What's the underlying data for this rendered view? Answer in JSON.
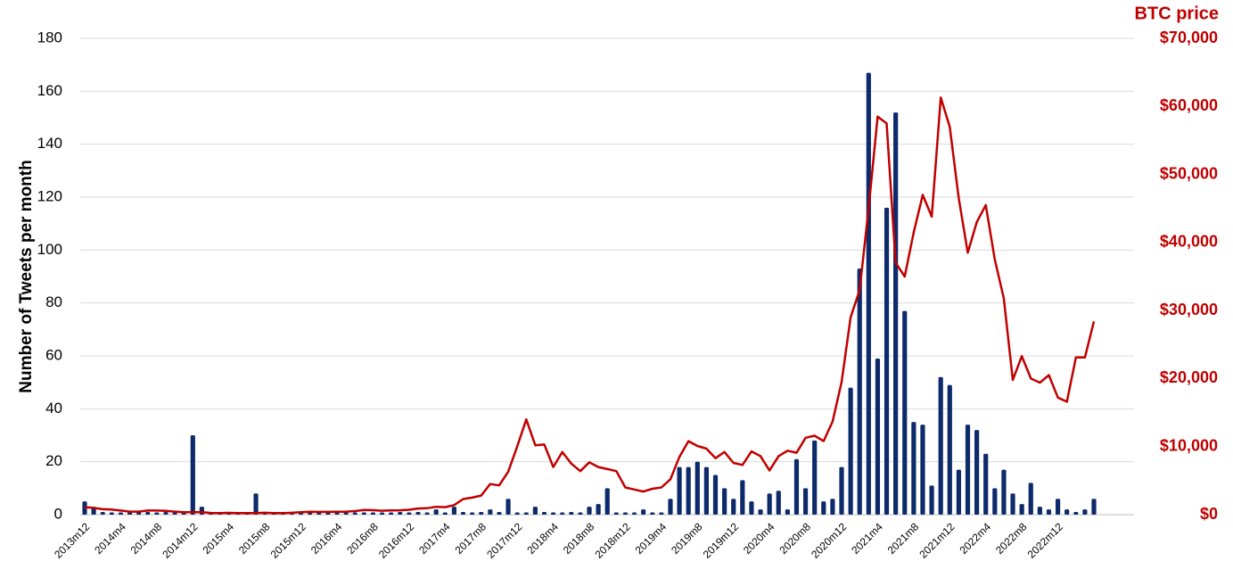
{
  "chart_data": {
    "type": "combo",
    "y_label": "Number of Tweets per month",
    "y2_label": "BTC price",
    "categories": [
      "2013m12",
      null,
      null,
      null,
      "2014m4",
      null,
      null,
      null,
      "2014m8",
      null,
      null,
      null,
      "2014m12",
      null,
      null,
      null,
      "2015m4",
      null,
      null,
      null,
      "2015m8",
      null,
      null,
      null,
      "2015m12",
      null,
      null,
      null,
      "2016m4",
      null,
      null,
      null,
      "2016m8",
      null,
      null,
      null,
      "2016m12",
      null,
      null,
      null,
      "2017m4",
      null,
      null,
      null,
      "2017m8",
      null,
      null,
      null,
      "2017m12",
      null,
      null,
      null,
      "2018m4",
      null,
      null,
      null,
      "2018m8",
      null,
      null,
      null,
      "2018m12",
      null,
      null,
      null,
      "2019m4",
      null,
      null,
      null,
      "2019m8",
      null,
      null,
      null,
      "2019m12",
      null,
      null,
      null,
      "2020m4",
      null,
      null,
      null,
      "2020m8",
      null,
      null,
      null,
      "2020m12",
      null,
      null,
      null,
      "2021m4",
      null,
      null,
      null,
      "2021m8",
      null,
      null,
      null,
      "2021m12",
      null,
      null,
      null,
      "2022m4",
      null,
      null,
      null,
      "2022m8",
      null,
      null,
      null,
      "2022m12",
      null,
      null,
      null,
      null
    ],
    "series": [
      {
        "type": "bar",
        "color": "#0d2a6b",
        "axis": "y",
        "values": [
          5,
          3,
          1,
          0,
          0,
          0,
          1,
          1,
          0,
          1,
          0,
          0,
          30,
          3,
          0,
          0,
          0,
          1,
          0,
          8,
          0,
          0,
          0,
          0,
          0,
          1,
          0,
          0,
          0,
          1,
          0,
          0,
          0,
          0,
          0,
          1,
          0,
          1,
          0,
          2,
          0,
          3,
          1,
          0,
          1,
          2,
          1,
          6,
          0,
          0,
          3,
          1,
          0,
          0,
          1,
          0,
          3,
          4,
          10,
          0,
          0,
          0,
          2,
          0,
          0,
          6,
          18,
          18,
          20,
          18,
          15,
          10,
          6,
          13,
          5,
          2,
          8,
          9,
          2,
          21,
          10,
          28,
          5,
          6,
          18,
          48,
          93,
          167,
          59,
          116,
          152,
          77,
          35,
          34,
          11,
          52,
          49,
          17,
          34,
          32,
          23,
          10,
          17,
          8,
          4,
          12,
          3,
          2,
          6,
          2,
          1,
          2,
          6
        ]
      },
      {
        "type": "line",
        "color": "#c00000",
        "axis": "y2",
        "values": [
          1100,
          1000,
          800,
          750,
          600,
          450,
          450,
          600,
          600,
          550,
          450,
          350,
          350,
          350,
          250,
          230,
          260,
          240,
          240,
          240,
          280,
          230,
          240,
          280,
          350,
          420,
          400,
          400,
          420,
          450,
          530,
          700,
          650,
          580,
          610,
          640,
          720,
          900,
          950,
          1150,
          1100,
          1400,
          2300,
          2500,
          2800,
          4500,
          4300,
          6300,
          10000,
          14000,
          10200,
          10300,
          7000,
          9200,
          7500,
          6400,
          7700,
          7000,
          6700,
          6400,
          4000,
          3700,
          3400,
          3800,
          4000,
          5200,
          8500,
          10800,
          10100,
          9700,
          8300,
          9200,
          7600,
          7300,
          9300,
          8600,
          6500,
          8600,
          9400,
          9100,
          11300,
          11600,
          10800,
          13700,
          19500,
          29000,
          33000,
          45000,
          58500,
          57500,
          37000,
          35000,
          41500,
          47000,
          43800,
          61300,
          57000,
          46500,
          38500,
          43000,
          45500,
          37500,
          31800,
          19800,
          23300,
          20000,
          19400,
          20500,
          17200,
          16600,
          23100,
          23100,
          28400
        ]
      }
    ],
    "ylim": [
      0,
      180
    ],
    "yticks": [
      0,
      20,
      40,
      60,
      80,
      100,
      120,
      140,
      160,
      180
    ],
    "y2lim": [
      0,
      70000
    ],
    "y2ticks": [
      {
        "value": 0,
        "label": "$0"
      },
      {
        "value": 10000,
        "label": "$10,000"
      },
      {
        "value": 20000,
        "label": "$20,000"
      },
      {
        "value": 30000,
        "label": "$30,000"
      },
      {
        "value": 40000,
        "label": "$40,000"
      },
      {
        "value": 50000,
        "label": "$50,000"
      },
      {
        "value": 60000,
        "label": "$60,000"
      },
      {
        "value": 70000,
        "label": "$70,000"
      }
    ],
    "grid": true
  }
}
